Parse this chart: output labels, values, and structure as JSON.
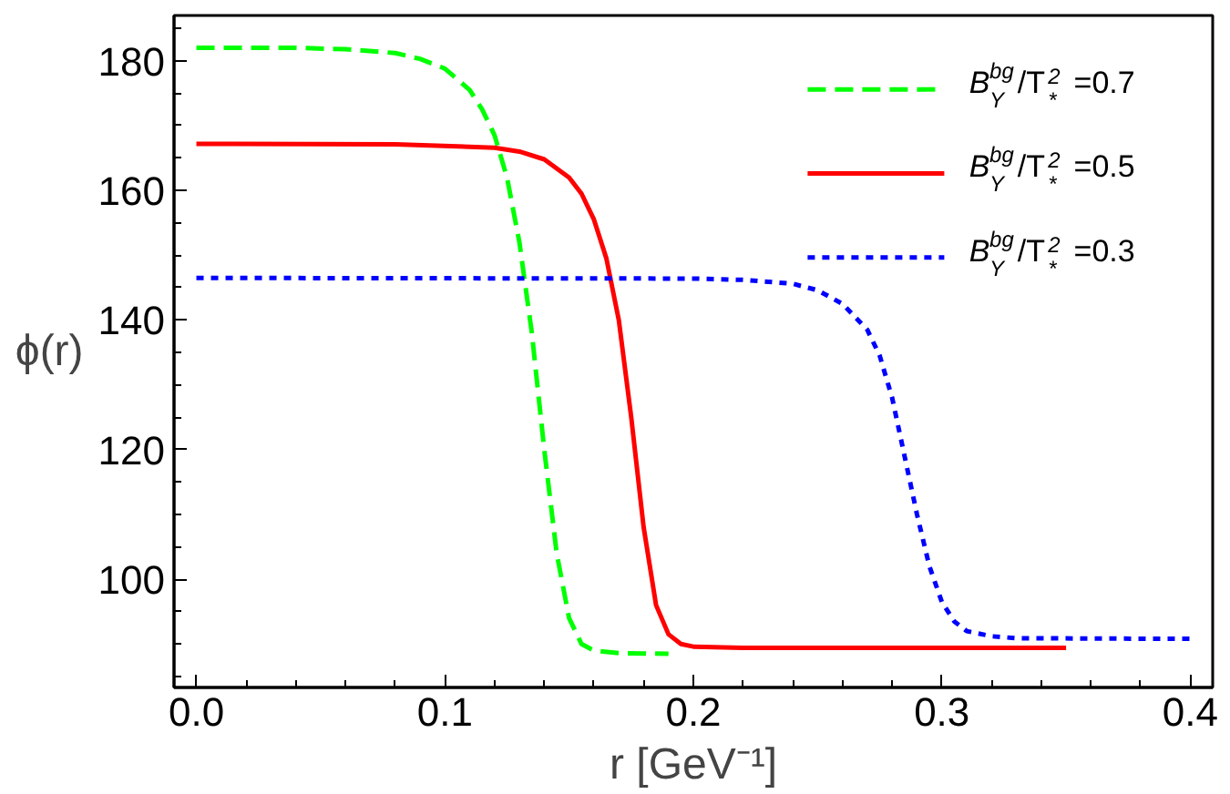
{
  "chart_data": {
    "type": "line",
    "xlabel": "r [GeV⁻¹]",
    "ylabel": "ϕ(r)",
    "xlim": [
      -0.009,
      0.409
    ],
    "ylim": [
      83.3,
      187
    ],
    "xticks": [
      {
        "value": 0,
        "label": "0.0"
      },
      {
        "value": 0.1,
        "label": "0.1"
      },
      {
        "value": 0.2,
        "label": "0.2"
      },
      {
        "value": 0.3,
        "label": "0.3"
      },
      {
        "value": 0.4,
        "label": "0.4"
      }
    ],
    "yticks": [
      100,
      120,
      140,
      160,
      180
    ],
    "grid": false,
    "legend": "top right",
    "series": [
      {
        "name": "B$^{bg}$$_{Y}$/T$^{2}$$_{*}$ =0.7",
        "color": "#00ff00",
        "line_style": "dashed",
        "x": [
          0,
          0.04,
          0.06,
          0.08,
          0.09,
          0.1,
          0.11,
          0.115,
          0.12,
          0.125,
          0.13,
          0.135,
          0.14,
          0.145,
          0.15,
          0.155,
          0.16,
          0.17,
          0.19
        ],
        "values": [
          182,
          182,
          181.8,
          181.2,
          180.3,
          178.8,
          175.5,
          172.5,
          168.5,
          162,
          152,
          138,
          120,
          104,
          94,
          90,
          89,
          88.6,
          88.5
        ]
      },
      {
        "name": "B$^{bg}$$_{Y}$/T$^{2}$$_{*}$ =0.5",
        "color": "#ff0000",
        "line_style": "solid",
        "x": [
          0,
          0.08,
          0.12,
          0.13,
          0.14,
          0.15,
          0.155,
          0.16,
          0.165,
          0.17,
          0.175,
          0.18,
          0.185,
          0.19,
          0.195,
          0.2,
          0.22,
          0.35
        ],
        "values": [
          167.2,
          167.1,
          166.6,
          166,
          164.8,
          162,
          159.5,
          155.5,
          149.5,
          140,
          125,
          108,
          96,
          91.5,
          90,
          89.6,
          89.4,
          89.4
        ]
      },
      {
        "name": "B$^{bg}$$_{Y}$/T$^{2}$$_{*}$ =0.3",
        "color": "#0000ff",
        "line_style": "dotted",
        "x": [
          0,
          0.2,
          0.22,
          0.24,
          0.25,
          0.26,
          0.27,
          0.275,
          0.28,
          0.285,
          0.29,
          0.295,
          0.3,
          0.305,
          0.31,
          0.32,
          0.33,
          0.4
        ],
        "values": [
          146.5,
          146.4,
          146.2,
          145.6,
          144.6,
          142.5,
          138.5,
          134.5,
          128,
          119,
          110,
          102,
          96.5,
          93.5,
          92,
          91.2,
          90.9,
          90.8
        ]
      }
    ]
  }
}
